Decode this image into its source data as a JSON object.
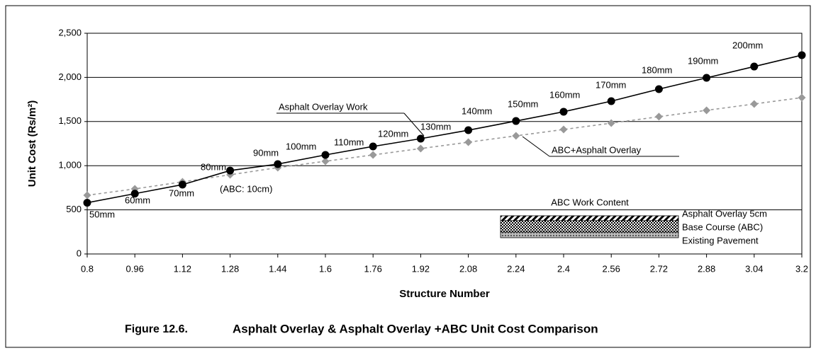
{
  "chart_data": {
    "type": "line",
    "caption_number": "Figure 12.6.",
    "title": "Asphalt Overlay & Asphalt Overlay +ABC Unit Cost Comparison",
    "x_label": "Structure Number",
    "y_label": "Unit Cost (Rs/m²)",
    "x": [
      0.8,
      0.96,
      1.12,
      1.28,
      1.44,
      1.6,
      1.76,
      1.92,
      2.08,
      2.24,
      2.4,
      2.56,
      2.72,
      2.88,
      3.04,
      3.2
    ],
    "xlim": [
      0.8,
      3.2
    ],
    "xticks": [
      0.8,
      0.96,
      1.12,
      1.28,
      1.44,
      1.6,
      1.76,
      1.92,
      2.08,
      2.24,
      2.4,
      2.56,
      2.72,
      2.88,
      3.04,
      3.2
    ],
    "ylim": [
      0,
      2500
    ],
    "yticks": [
      0,
      500,
      {
        "value": 1000,
        "label": "1,000"
      },
      {
        "value": 1500,
        "label": "1,500"
      },
      {
        "value": 2000,
        "label": "2,000"
      },
      {
        "value": 2500,
        "label": "2,500"
      }
    ],
    "grid": true,
    "series": [
      {
        "name": "Asphalt Overlay Work",
        "color": "#000000",
        "marker": "circle",
        "dashed": false,
        "values": [
          580,
          683,
          785,
          945,
          1018,
          1122,
          1218,
          1306,
          1402,
          1506,
          1611,
          1731,
          1867,
          1995,
          2123,
          2252
        ],
        "point_labels": [
          "50mm",
          "60mm",
          "70mm",
          "80mm",
          "90mm",
          "100mm",
          "110mm",
          "120mm",
          "130mm",
          "140mm",
          "150mm",
          "160mm",
          "170mm",
          "180mm",
          "190mm",
          "200mm"
        ]
      },
      {
        "name": "ABC+Asphalt Overlay",
        "color": "#999999",
        "marker": "diamond",
        "dashed": true,
        "values": [
          665,
          737,
          817,
          897,
          978,
          1050,
          1122,
          1194,
          1266,
          1338,
          1410,
          1482,
          1555,
          1627,
          1699,
          1771
        ]
      }
    ],
    "annotation": "(ABC: 10cm)",
    "inset": {
      "title": "ABC Work Content",
      "layers": [
        "Asphalt Overlay 5cm",
        "Base Course (ABC)",
        "Existing Pavement"
      ]
    }
  }
}
